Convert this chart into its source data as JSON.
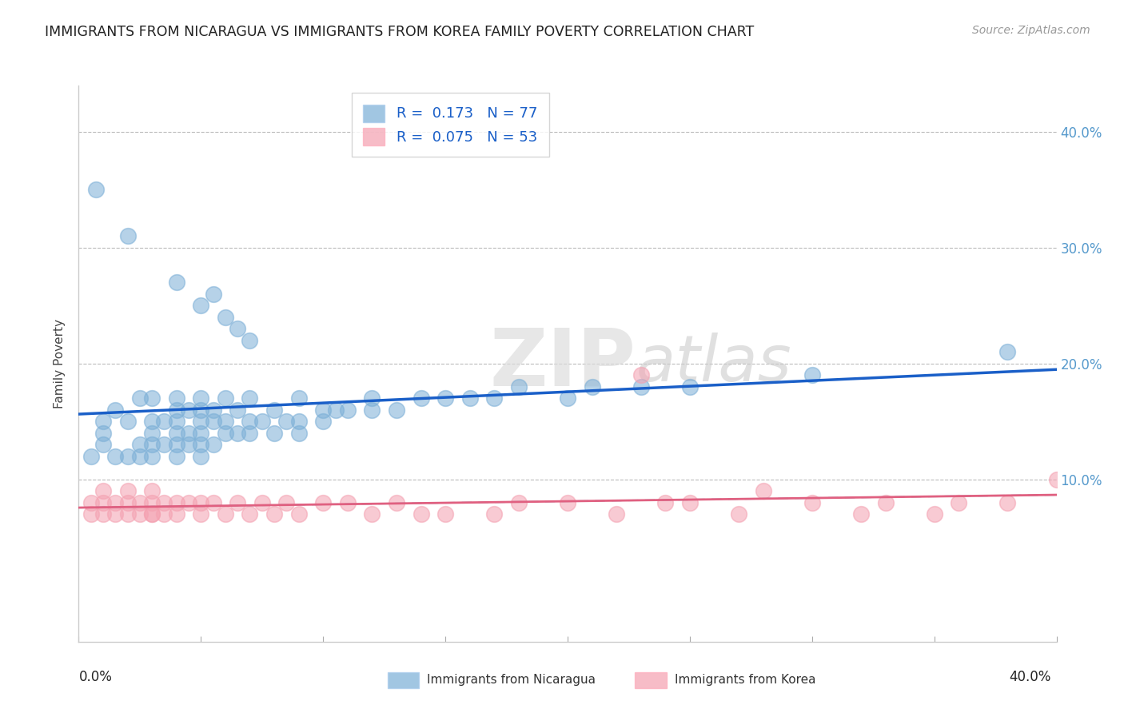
{
  "title": "IMMIGRANTS FROM NICARAGUA VS IMMIGRANTS FROM KOREA FAMILY POVERTY CORRELATION CHART",
  "source": "Source: ZipAtlas.com",
  "ylabel": "Family Poverty",
  "xlim": [
    0.0,
    0.42
  ],
  "ylim": [
    -0.04,
    0.44
  ],
  "plot_xlim": [
    0.0,
    0.4
  ],
  "plot_ylim": [
    0.0,
    0.4
  ],
  "nicaragua_R": 0.173,
  "nicaragua_N": 77,
  "korea_R": 0.075,
  "korea_N": 53,
  "nicaragua_color": "#7aaed6",
  "korea_color": "#f4a0b0",
  "nicaragua_line_color": "#1a5fc8",
  "korea_line_color": "#e06080",
  "watermark_zip": "ZIP",
  "watermark_atlas": "atlas",
  "nicaragua_x": [
    0.005,
    0.01,
    0.01,
    0.01,
    0.015,
    0.015,
    0.02,
    0.02,
    0.025,
    0.025,
    0.025,
    0.03,
    0.03,
    0.03,
    0.03,
    0.03,
    0.035,
    0.035,
    0.04,
    0.04,
    0.04,
    0.04,
    0.04,
    0.04,
    0.045,
    0.045,
    0.045,
    0.05,
    0.05,
    0.05,
    0.05,
    0.05,
    0.05,
    0.055,
    0.055,
    0.055,
    0.06,
    0.06,
    0.06,
    0.065,
    0.065,
    0.07,
    0.07,
    0.07,
    0.075,
    0.08,
    0.08,
    0.085,
    0.09,
    0.09,
    0.09,
    0.1,
    0.1,
    0.105,
    0.11,
    0.12,
    0.12,
    0.13,
    0.14,
    0.15,
    0.16,
    0.17,
    0.18,
    0.2,
    0.21,
    0.23,
    0.25,
    0.3,
    0.38,
    0.007,
    0.02,
    0.04,
    0.05,
    0.055,
    0.06,
    0.065,
    0.07
  ],
  "nicaragua_y": [
    0.12,
    0.13,
    0.14,
    0.15,
    0.12,
    0.16,
    0.12,
    0.15,
    0.12,
    0.13,
    0.17,
    0.12,
    0.13,
    0.14,
    0.15,
    0.17,
    0.13,
    0.15,
    0.12,
    0.13,
    0.14,
    0.15,
    0.16,
    0.17,
    0.13,
    0.14,
    0.16,
    0.12,
    0.13,
    0.14,
    0.15,
    0.16,
    0.17,
    0.13,
    0.15,
    0.16,
    0.14,
    0.15,
    0.17,
    0.14,
    0.16,
    0.14,
    0.15,
    0.17,
    0.15,
    0.14,
    0.16,
    0.15,
    0.14,
    0.15,
    0.17,
    0.15,
    0.16,
    0.16,
    0.16,
    0.16,
    0.17,
    0.16,
    0.17,
    0.17,
    0.17,
    0.17,
    0.18,
    0.17,
    0.18,
    0.18,
    0.18,
    0.19,
    0.21,
    0.35,
    0.31,
    0.27,
    0.25,
    0.26,
    0.24,
    0.23,
    0.22
  ],
  "korea_x": [
    0.005,
    0.005,
    0.01,
    0.01,
    0.01,
    0.015,
    0.015,
    0.02,
    0.02,
    0.02,
    0.025,
    0.025,
    0.03,
    0.03,
    0.03,
    0.03,
    0.035,
    0.035,
    0.04,
    0.04,
    0.045,
    0.05,
    0.05,
    0.055,
    0.06,
    0.065,
    0.07,
    0.075,
    0.08,
    0.085,
    0.09,
    0.1,
    0.11,
    0.12,
    0.13,
    0.14,
    0.15,
    0.17,
    0.18,
    0.2,
    0.22,
    0.24,
    0.25,
    0.27,
    0.3,
    0.32,
    0.33,
    0.35,
    0.38,
    0.4,
    0.23,
    0.28,
    0.36
  ],
  "korea_y": [
    0.07,
    0.08,
    0.07,
    0.08,
    0.09,
    0.07,
    0.08,
    0.07,
    0.08,
    0.09,
    0.07,
    0.08,
    0.07,
    0.07,
    0.08,
    0.09,
    0.07,
    0.08,
    0.07,
    0.08,
    0.08,
    0.07,
    0.08,
    0.08,
    0.07,
    0.08,
    0.07,
    0.08,
    0.07,
    0.08,
    0.07,
    0.08,
    0.08,
    0.07,
    0.08,
    0.07,
    0.07,
    0.07,
    0.08,
    0.08,
    0.07,
    0.08,
    0.08,
    0.07,
    0.08,
    0.07,
    0.08,
    0.07,
    0.08,
    0.1,
    0.19,
    0.09,
    0.08
  ],
  "xticks": [
    0.0,
    0.05,
    0.1,
    0.15,
    0.2,
    0.25,
    0.3,
    0.35,
    0.4
  ],
  "yticks": [
    0.0,
    0.1,
    0.2,
    0.3,
    0.4
  ],
  "legend_label_1": "R =  0.173   N = 77",
  "legend_label_2": "R =  0.075   N = 53",
  "bottom_label_1": "Immigrants from Nicaragua",
  "bottom_label_2": "Immigrants from Korea"
}
